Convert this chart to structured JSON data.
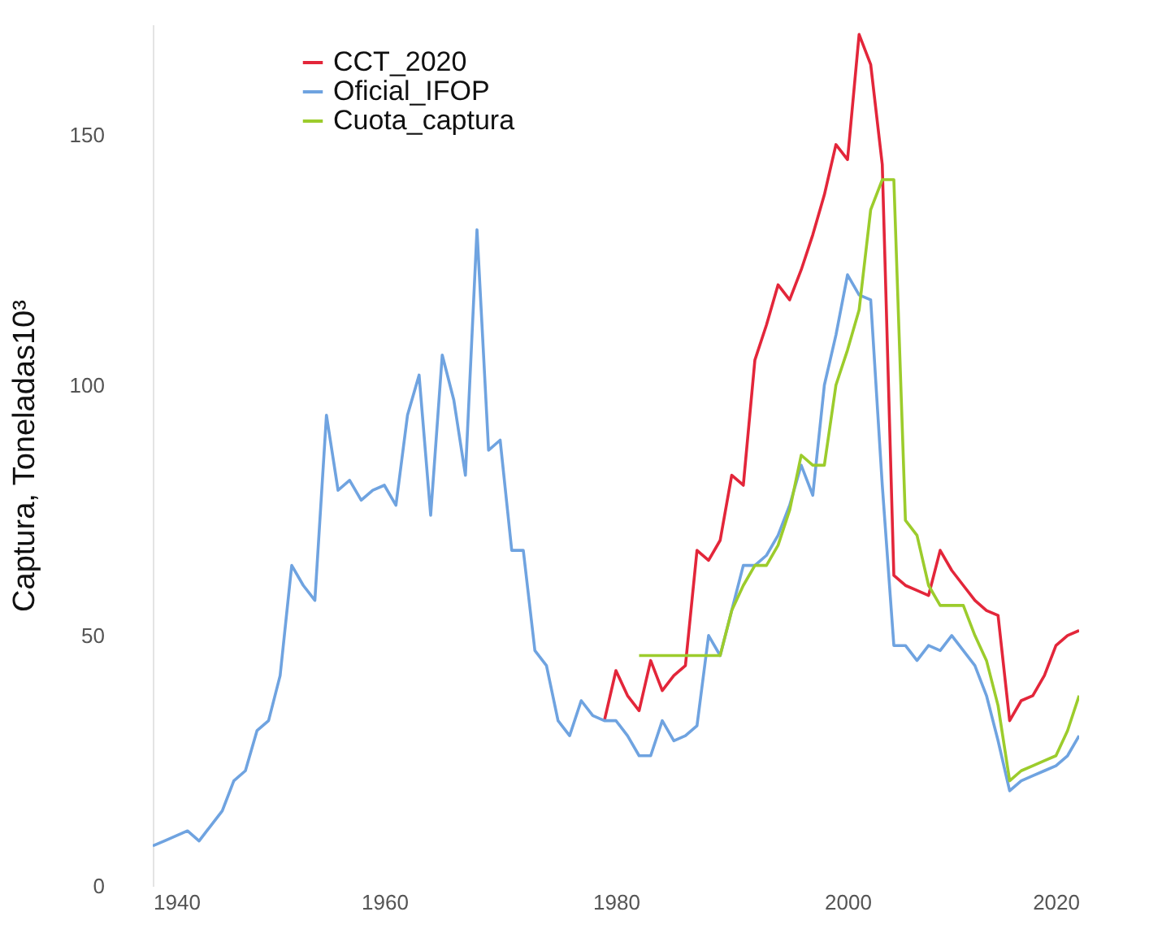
{
  "chart_data": {
    "type": "line",
    "ylabel": "Captura, Toneladas10³",
    "xlim": [
      1940,
      2020
    ],
    "xticks": [
      1940,
      1960,
      1980,
      2000,
      2020
    ],
    "ylim": [
      0,
      172
    ],
    "yticks": [
      0,
      50,
      100,
      150
    ],
    "grid": false,
    "legend": "top left",
    "line_style": "solid",
    "series": [
      {
        "name": "CCT_2020",
        "color": "#e3263a",
        "x": [
          1979,
          1980,
          1981,
          1982,
          1983,
          1984,
          1985,
          1986,
          1987,
          1988,
          1989,
          1990,
          1991,
          1992,
          1993,
          1994,
          1995,
          1996,
          1997,
          1998,
          1999,
          2000,
          2001,
          2002,
          2003,
          2004,
          2005,
          2006,
          2007,
          2008,
          2009,
          2010,
          2011,
          2012,
          2013,
          2014,
          2015,
          2016,
          2017,
          2018,
          2019,
          2020
        ],
        "values": [
          33,
          43,
          38,
          35,
          45,
          39,
          42,
          44,
          67,
          65,
          69,
          82,
          80,
          105,
          112,
          120,
          117,
          123,
          130,
          138,
          148,
          145,
          170,
          164,
          144,
          62,
          60,
          59,
          58,
          67,
          63,
          60,
          57,
          55,
          54,
          33,
          37,
          38,
          42,
          48,
          50,
          51
        ]
      },
      {
        "name": "Oficial_IFOP",
        "color": "#6fa3e0",
        "x": [
          1940,
          1941,
          1942,
          1943,
          1944,
          1945,
          1946,
          1947,
          1948,
          1949,
          1950,
          1951,
          1952,
          1953,
          1954,
          1955,
          1956,
          1957,
          1958,
          1959,
          1960,
          1961,
          1962,
          1963,
          1964,
          1965,
          1966,
          1967,
          1968,
          1969,
          1970,
          1971,
          1972,
          1973,
          1974,
          1975,
          1976,
          1977,
          1978,
          1979,
          1980,
          1981,
          1982,
          1983,
          1984,
          1985,
          1986,
          1987,
          1988,
          1989,
          1990,
          1991,
          1992,
          1993,
          1994,
          1995,
          1996,
          1997,
          1998,
          1999,
          2000,
          2001,
          2002,
          2003,
          2004,
          2005,
          2006,
          2007,
          2008,
          2009,
          2010,
          2011,
          2012,
          2013,
          2014,
          2015,
          2016,
          2017,
          2018,
          2019,
          2020
        ],
        "values": [
          8,
          9,
          10,
          11,
          9,
          12,
          15,
          21,
          23,
          31,
          33,
          42,
          64,
          60,
          57,
          94,
          79,
          81,
          77,
          79,
          80,
          76,
          94,
          102,
          74,
          106,
          97,
          82,
          131,
          87,
          89,
          67,
          67,
          47,
          44,
          33,
          30,
          37,
          34,
          33,
          33,
          30,
          26,
          26,
          33,
          29,
          30,
          32,
          50,
          46,
          55,
          64,
          64,
          66,
          70,
          76,
          84,
          78,
          100,
          110,
          122,
          118,
          117,
          80,
          48,
          48,
          45,
          48,
          47,
          50,
          47,
          44,
          38,
          29,
          19,
          21,
          22,
          23,
          24,
          26,
          30
        ]
      },
      {
        "name": "Cuota_captura",
        "color": "#9ccc2c",
        "x": [
          1982,
          1983,
          1984,
          1985,
          1986,
          1987,
          1988,
          1989,
          1990,
          1991,
          1992,
          1993,
          1994,
          1995,
          1996,
          1997,
          1998,
          1999,
          2000,
          2001,
          2002,
          2003,
          2004,
          2005,
          2006,
          2007,
          2008,
          2009,
          2010,
          2011,
          2012,
          2013,
          2014,
          2015,
          2016,
          2017,
          2018,
          2019,
          2020
        ],
        "values": [
          46,
          46,
          46,
          46,
          46,
          46,
          46,
          46,
          55,
          60,
          64,
          64,
          68,
          75,
          86,
          84,
          84,
          100,
          107,
          115,
          135,
          141,
          141,
          73,
          70,
          60,
          56,
          56,
          56,
          50,
          45,
          36,
          21,
          23,
          24,
          25,
          26,
          31,
          38
        ]
      }
    ]
  }
}
